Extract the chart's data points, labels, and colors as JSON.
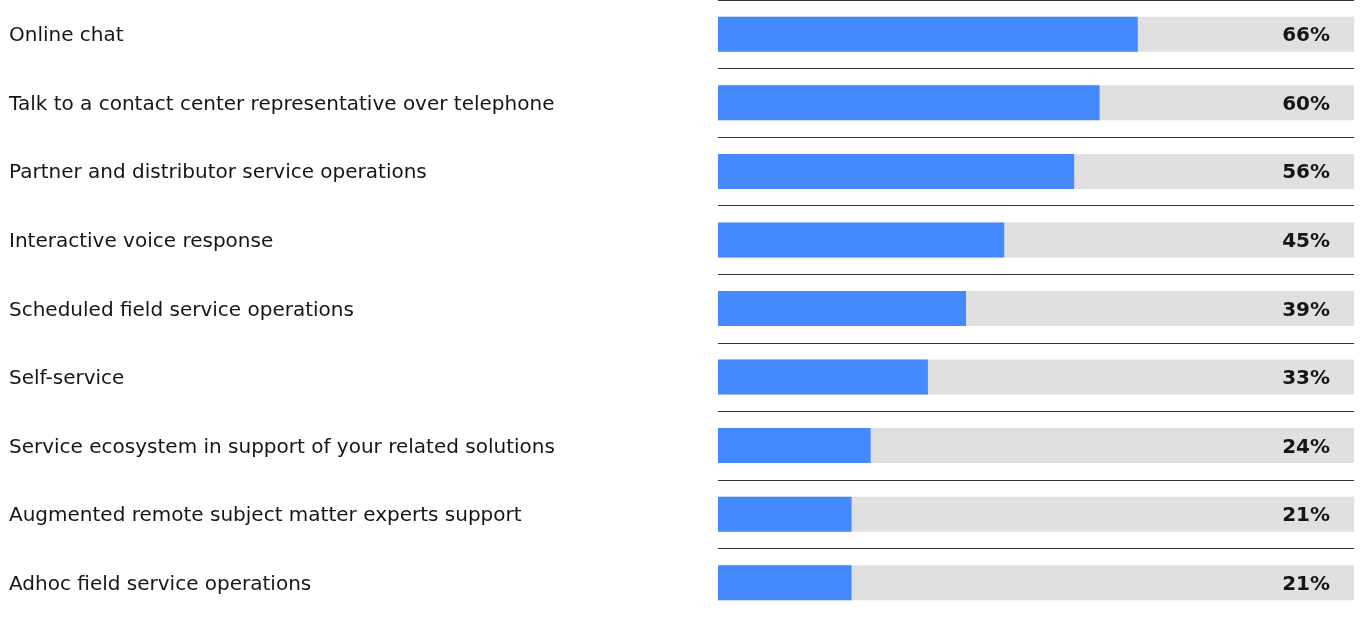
{
  "chart_data": {
    "type": "bar",
    "orientation": "horizontal",
    "categories": [
      "Online chat",
      "Talk to a contact center representative over telephone",
      "Partner and distributor service operations",
      "Interactive voice response",
      "Scheduled field service operations",
      "Self-service",
      "Service ecosystem in support of your related solutions",
      "Augmented remote subject matter experts support",
      "Adhoc field service operations"
    ],
    "values": [
      66,
      60,
      56,
      45,
      39,
      33,
      24,
      21,
      21
    ],
    "value_labels": [
      "66%",
      "60%",
      "56%",
      "45%",
      "39%",
      "33%",
      "24%",
      "21%",
      "21%"
    ],
    "color": "#4589ff",
    "xlim": [
      0,
      100
    ],
    "grid": "y"
  }
}
